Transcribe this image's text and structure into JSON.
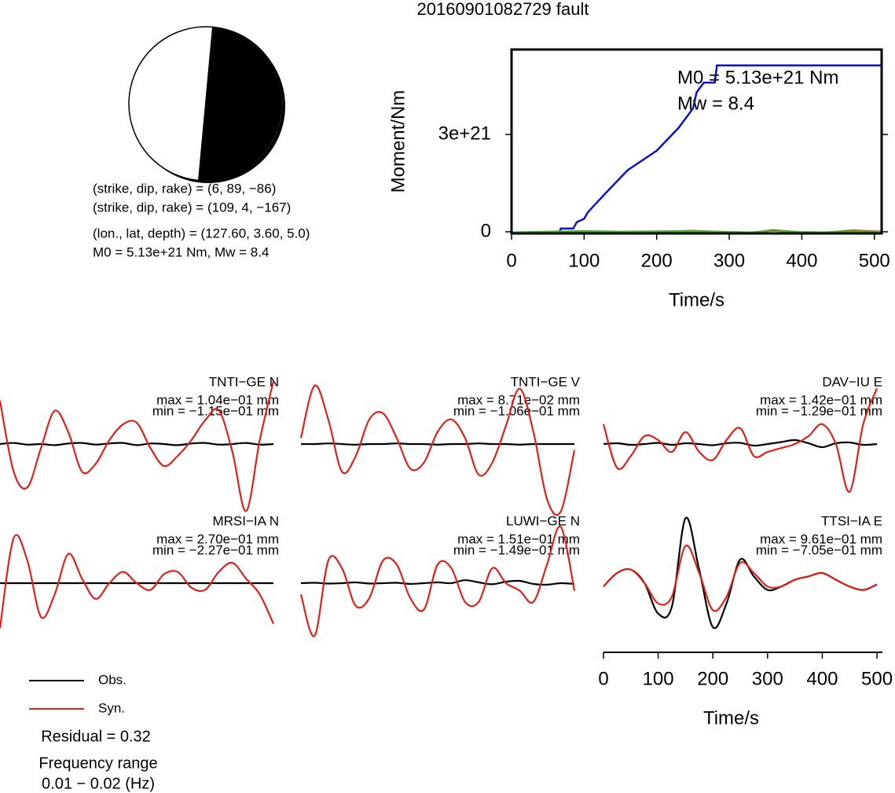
{
  "title": "20160901082729 fault",
  "mechanism": {
    "lines": [
      "(strike, dip, rake) = (6, 89, −86)",
      "(strike, dip, rake) = (109, 4, −167)",
      "(lon., lat, depth) = (127.60, 3.60, 5.0)",
      "M0 = 5.13e+21 Nm, Mw = 8.4"
    ]
  },
  "legend": {
    "entries": [
      {
        "name": "Obs.",
        "color": "#000000"
      },
      {
        "name": "Syn.",
        "color": "#e0201b"
      }
    ]
  },
  "residual": "Residual = 0.32",
  "frequency": [
    "Frequency range",
    "0.01 − 0.02 (Hz)"
  ],
  "chart_data": [
    {
      "type": "line",
      "xlabel": "Time/s",
      "ylabel": "Moment/Nm",
      "annotations": [
        "M0 = 5.13e+21 Nm",
        "Mw = 8.4"
      ],
      "xlim": [
        0,
        510
      ],
      "ylim": [
        -5e+19,
        5.62e+21
      ],
      "xticks": [
        0,
        100,
        200,
        300,
        400,
        500
      ],
      "yticks": [
        0,
        {
          "value": 3e+21,
          "label": "3e+21"
        }
      ],
      "series": [
        {
          "color": "#1010d0",
          "x": [
            0,
            65,
            68,
            85,
            90,
            100,
            105,
            130,
            160,
            200,
            230,
            250,
            255,
            265,
            280,
            283,
            510
          ],
          "values": [
            -5e+19,
            -5e+19,
            1e+20,
            1e+20,
            3e+20,
            4e+20,
            6e+20,
            1.2e+21,
            1.9e+21,
            2.5e+21,
            3.2e+21,
            3.8e+21,
            4.3e+21,
            4.6e+21,
            4.6e+21,
            5.13e+21,
            5.13e+21
          ]
        },
        {
          "color": "#e0201b",
          "x": [
            0,
            50,
            100,
            150,
            200,
            250,
            300,
            330,
            360,
            400,
            430,
            470,
            510
          ],
          "values": [
            -3e+19,
            -2e+19,
            0,
            -2e+19,
            0,
            3e+19,
            -2e+19,
            -3e+19,
            5e+19,
            -2e+19,
            -3e+19,
            4e+19,
            0
          ]
        },
        {
          "color": "#40b020",
          "x": [
            0,
            50,
            100,
            150,
            200,
            250,
            300,
            330,
            360,
            400,
            430,
            470,
            510
          ],
          "values": [
            -2e+19,
            0,
            2e+19,
            0,
            1e+19,
            2e+19,
            -1e+19,
            -2e+19,
            3e+19,
            -1e+19,
            -2e+19,
            2e+19,
            -1e+19
          ]
        }
      ]
    },
    {
      "type": "waveform",
      "station": "TNTI−GE N",
      "max_label": "max = 1.04e−01 mm",
      "min_label": "min = −1.15e−01 mm",
      "xlim": [
        0,
        510
      ],
      "ylim": [
        -0.12,
        0.12
      ],
      "x": [
        0,
        25,
        50,
        75,
        100,
        125,
        150,
        175,
        200,
        225,
        250,
        275,
        300,
        325,
        350,
        375,
        400,
        425,
        450,
        475,
        500
      ],
      "series": [
        {
          "color": "#000000",
          "values": [
            0,
            0.002,
            -0.001,
            0,
            -0.002,
            0.001,
            0.002,
            -0.001,
            0.001,
            0.002,
            -0.002,
            0.001,
            0,
            -0.002,
            0.001,
            0.002,
            -0.001,
            0,
            0.002,
            -0.001,
            0
          ]
        },
        {
          "color": "#e0201b",
          "values": [
            0.077,
            -0.049,
            -0.077,
            -0.007,
            0.059,
            0.021,
            -0.049,
            -0.035,
            0.007,
            0.035,
            0.038,
            -0.007,
            -0.039,
            -0.021,
            0.007,
            0.042,
            0.06,
            -0.014,
            -0.119,
            0.007,
            0.112
          ]
        }
      ]
    },
    {
      "type": "waveform",
      "station": "TNTI−GE V",
      "max_label": "max = 8.71e−02 mm",
      "min_label": "min = −1.06e−01 mm",
      "xlim": [
        0,
        510
      ],
      "ylim": [
        -0.11,
        0.11
      ],
      "x": [
        0,
        25,
        50,
        75,
        100,
        125,
        150,
        175,
        200,
        225,
        250,
        275,
        300,
        325,
        350,
        375,
        400,
        425,
        450,
        475,
        500
      ],
      "series": [
        {
          "color": "#000000",
          "values": [
            0,
            0,
            0.001,
            0,
            -0.001,
            0,
            0,
            0.001,
            0,
            0,
            -0.001,
            0,
            0,
            0.001,
            0,
            0,
            -0.001,
            0,
            0,
            0,
            0
          ]
        },
        {
          "color": "#e0201b",
          "values": [
            0.01,
            0.095,
            0.04,
            -0.045,
            -0.02,
            0.04,
            0.05,
            0.01,
            -0.04,
            -0.03,
            0.02,
            0.04,
            0.01,
            -0.05,
            -0.03,
            0.03,
            0.09,
            0.02,
            -0.09,
            -0.11,
            -0.01
          ]
        }
      ]
    },
    {
      "type": "waveform",
      "station": "DAV−IU E",
      "max_label": "max = 1.42e−01 mm",
      "min_label": "min = −1.29e−01 mm",
      "xlim": [
        0,
        510
      ],
      "ylim": [
        -0.17,
        0.17
      ],
      "x": [
        0,
        25,
        50,
        75,
        100,
        125,
        150,
        175,
        200,
        225,
        250,
        275,
        300,
        325,
        350,
        375,
        400,
        425,
        450,
        475,
        500
      ],
      "series": [
        {
          "color": "#000000",
          "values": [
            0,
            0.002,
            -0.002,
            0,
            0.003,
            -0.002,
            0.002,
            0,
            -0.003,
            0.002,
            0.003,
            -0.004,
            0,
            0.005,
            0.01,
            0.002,
            -0.008,
            0.002,
            0.004,
            -0.002,
            0
          ]
        },
        {
          "color": "#e0201b",
          "values": [
            0.05,
            -0.06,
            -0.03,
            0.02,
            0.01,
            -0.02,
            0.03,
            -0.02,
            -0.04,
            0.01,
            0.04,
            -0.03,
            -0.02,
            -0.01,
            0,
            0.02,
            0.05,
            0,
            -0.12,
            0.05,
            0.14
          ]
        }
      ]
    },
    {
      "type": "waveform",
      "station": "MRSI−IA N",
      "max_label": "max = 2.70e−01 mm",
      "min_label": "min = −2.27e−01 mm",
      "xlim": [
        0,
        510
      ],
      "ylim": [
        -0.3,
        0.3
      ],
      "x": [
        0,
        25,
        50,
        75,
        100,
        125,
        150,
        175,
        200,
        225,
        250,
        275,
        300,
        325,
        350,
        375,
        400,
        425,
        450,
        475,
        500
      ],
      "series": [
        {
          "color": "#000000",
          "values": [
            0,
            0,
            0,
            0,
            0,
            0,
            0,
            0,
            0,
            0,
            0,
            0,
            0,
            0,
            0,
            0,
            0,
            0,
            0,
            0,
            0
          ]
        },
        {
          "color": "#e0201b",
          "values": [
            -0.2,
            0.2,
            0.1,
            -0.15,
            -0.05,
            0.13,
            0.02,
            -0.07,
            0,
            0.05,
            0,
            -0.03,
            0.04,
            0.05,
            -0.02,
            -0.03,
            0.05,
            0.09,
            0.02,
            -0.05,
            -0.18
          ]
        }
      ]
    },
    {
      "type": "waveform",
      "station": "LUWI−GE N",
      "max_label": "max = 1.51e−01 mm",
      "min_label": "min = −1.49e−01 mm",
      "xlim": [
        0,
        510
      ],
      "ylim": [
        -0.18,
        0.18
      ],
      "x": [
        0,
        25,
        50,
        75,
        100,
        125,
        150,
        175,
        200,
        225,
        250,
        275,
        300,
        325,
        350,
        375,
        400,
        425,
        450,
        475,
        500
      ],
      "series": [
        {
          "color": "#000000",
          "values": [
            0,
            0.001,
            -0.001,
            0,
            0.002,
            -0.001,
            0,
            0.001,
            -0.002,
            0,
            0.002,
            0,
            0.008,
            0.002,
            -0.003,
            0.004,
            0.006,
            -0.002,
            -0.004,
            0,
            -0.002
          ]
        },
        {
          "color": "#e0201b",
          "values": [
            -0.03,
            -0.14,
            0.06,
            0.04,
            -0.06,
            -0.04,
            0.06,
            0.05,
            -0.04,
            -0.07,
            0.05,
            0.04,
            -0.05,
            -0.05,
            0.04,
            0,
            -0.02,
            -0.05,
            0.05,
            0.15,
            -0.02
          ]
        }
      ]
    },
    {
      "type": "waveform",
      "station": "TTSI−IA E",
      "max_label": "max = 9.61e−01 mm",
      "min_label": "min = −7.05e−01 mm",
      "xlabel": "Time/s",
      "xlim": [
        0,
        510
      ],
      "ylim": [
        -1.0,
        1.0
      ],
      "xticks": [
        0,
        100,
        200,
        300,
        400,
        500
      ],
      "x": [
        0,
        25,
        50,
        75,
        100,
        125,
        150,
        175,
        200,
        225,
        250,
        275,
        300,
        325,
        350,
        375,
        400,
        425,
        450,
        475,
        500
      ],
      "series": [
        {
          "color": "#000000",
          "values": [
            -0.05,
            0.15,
            0.2,
            0,
            -0.45,
            -0.35,
            0.96,
            0.2,
            -0.65,
            -0.3,
            0.35,
            0.1,
            -0.1,
            -0.05,
            0.05,
            0.1,
            0.15,
            0.05,
            -0.05,
            -0.1,
            -0.02
          ]
        },
        {
          "color": "#e0201b",
          "values": [
            -0.05,
            0.15,
            0.2,
            0,
            -0.3,
            -0.2,
            0.55,
            0.15,
            -0.4,
            -0.2,
            0.3,
            0.15,
            -0.05,
            -0.05,
            0.05,
            0.1,
            0.15,
            0.05,
            -0.05,
            -0.1,
            -0.02
          ]
        }
      ]
    }
  ]
}
